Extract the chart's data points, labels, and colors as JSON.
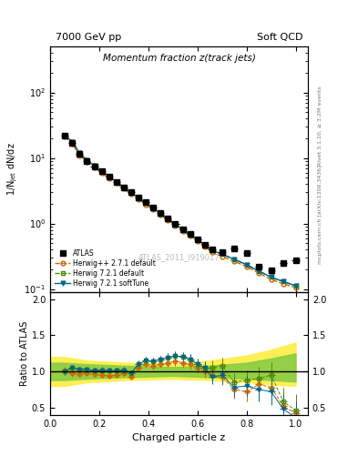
{
  "title_main": "Momentum fraction z(track jets)",
  "top_left_label": "7000 GeV pp",
  "top_right_label": "Soft QCD",
  "right_label_top": "Rivet 3.1.10, ≥ 3.2M events",
  "right_label_bottom": "mcplots.cern.ch [arXiv:1306.3436]",
  "watermark": "ATLAS_2011_I919017",
  "ylabel_main": "1/N$_\\mathregular{jet}$ dN/dz",
  "ylabel_ratio": "Ratio to ATLAS",
  "xlabel": "Charged particle z",
  "atlas_x": [
    0.06,
    0.09,
    0.12,
    0.15,
    0.18,
    0.21,
    0.24,
    0.27,
    0.3,
    0.33,
    0.36,
    0.39,
    0.42,
    0.45,
    0.48,
    0.51,
    0.54,
    0.57,
    0.6,
    0.63,
    0.66,
    0.7,
    0.75,
    0.8,
    0.85,
    0.9,
    0.95,
    1.0
  ],
  "atlas_y": [
    22.0,
    17.0,
    11.5,
    9.0,
    7.5,
    6.2,
    5.2,
    4.3,
    3.5,
    3.0,
    2.5,
    2.1,
    1.75,
    1.45,
    1.2,
    1.0,
    0.82,
    0.7,
    0.58,
    0.48,
    0.4,
    0.36,
    0.42,
    0.35,
    0.22,
    0.19,
    0.25,
    0.27
  ],
  "atlas_yerr": [
    0.5,
    0.4,
    0.3,
    0.25,
    0.2,
    0.18,
    0.15,
    0.12,
    0.1,
    0.09,
    0.08,
    0.07,
    0.06,
    0.05,
    0.04,
    0.04,
    0.03,
    0.03,
    0.03,
    0.02,
    0.02,
    0.02,
    0.02,
    0.02,
    0.02,
    0.02,
    0.02,
    0.03
  ],
  "hpp_x": [
    0.06,
    0.09,
    0.12,
    0.15,
    0.18,
    0.21,
    0.24,
    0.27,
    0.3,
    0.33,
    0.36,
    0.39,
    0.42,
    0.45,
    0.48,
    0.51,
    0.54,
    0.57,
    0.6,
    0.63,
    0.66,
    0.7,
    0.75,
    0.8,
    0.85,
    0.9,
    0.95,
    1.0
  ],
  "hpp_y": [
    21.0,
    16.5,
    11.0,
    8.8,
    7.2,
    5.9,
    4.9,
    4.1,
    3.4,
    2.8,
    2.35,
    1.95,
    1.62,
    1.35,
    1.12,
    0.93,
    0.77,
    0.65,
    0.54,
    0.44,
    0.365,
    0.315,
    0.265,
    0.22,
    0.175,
    0.14,
    0.12,
    0.105
  ],
  "h721_x": [
    0.06,
    0.09,
    0.12,
    0.15,
    0.18,
    0.21,
    0.24,
    0.27,
    0.3,
    0.33,
    0.36,
    0.39,
    0.42,
    0.45,
    0.48,
    0.51,
    0.54,
    0.57,
    0.6,
    0.63,
    0.66,
    0.7,
    0.75,
    0.8,
    0.85,
    0.9,
    0.95,
    1.0
  ],
  "h721_y": [
    22.0,
    17.8,
    11.8,
    9.3,
    7.6,
    6.3,
    5.25,
    4.35,
    3.58,
    2.95,
    2.47,
    2.05,
    1.7,
    1.42,
    1.18,
    0.98,
    0.81,
    0.68,
    0.57,
    0.47,
    0.39,
    0.34,
    0.285,
    0.235,
    0.188,
    0.152,
    0.13,
    0.112
  ],
  "h721st_x": [
    0.06,
    0.09,
    0.12,
    0.15,
    0.18,
    0.21,
    0.24,
    0.27,
    0.3,
    0.33,
    0.36,
    0.39,
    0.42,
    0.45,
    0.48,
    0.51,
    0.54,
    0.57,
    0.6,
    0.63,
    0.66,
    0.7,
    0.75,
    0.8,
    0.85,
    0.9,
    0.95,
    1.0
  ],
  "h721st_y": [
    22.0,
    17.8,
    11.8,
    9.3,
    7.6,
    6.3,
    5.25,
    4.35,
    3.58,
    2.95,
    2.47,
    2.05,
    1.7,
    1.42,
    1.18,
    0.98,
    0.81,
    0.68,
    0.57,
    0.47,
    0.39,
    0.34,
    0.285,
    0.235,
    0.188,
    0.152,
    0.13,
    0.112
  ],
  "atlas_color": "#000000",
  "hpp_color": "#cc6600",
  "h721_color": "#558800",
  "h721st_color": "#006688",
  "band_yellow_x": [
    0.0,
    0.06,
    0.15,
    0.3,
    0.5,
    0.65,
    0.8,
    0.9,
    1.0
  ],
  "band_yellow_low": [
    0.8,
    0.8,
    0.85,
    0.88,
    0.9,
    0.88,
    0.85,
    0.82,
    0.8
  ],
  "band_yellow_high": [
    1.2,
    1.2,
    1.15,
    1.12,
    1.1,
    1.15,
    1.22,
    1.3,
    1.4
  ],
  "band_green_x": [
    0.0,
    0.06,
    0.15,
    0.3,
    0.5,
    0.65,
    0.8,
    0.9,
    1.0
  ],
  "band_green_low": [
    0.88,
    0.88,
    0.9,
    0.92,
    0.94,
    0.92,
    0.9,
    0.88,
    0.86
  ],
  "band_green_high": [
    1.12,
    1.12,
    1.1,
    1.08,
    1.06,
    1.08,
    1.12,
    1.18,
    1.25
  ],
  "ratio_hpp": [
    1.02,
    0.97,
    0.96,
    0.98,
    0.96,
    0.95,
    0.94,
    0.95,
    0.97,
    0.93,
    1.05,
    1.1,
    1.08,
    1.1,
    1.12,
    1.14,
    1.12,
    1.1,
    1.05,
    1.0,
    0.95,
    0.92,
    0.75,
    0.72,
    0.82,
    0.78,
    0.52,
    0.42
  ],
  "ratio_hpp_err": [
    0.05,
    0.04,
    0.04,
    0.04,
    0.04,
    0.04,
    0.04,
    0.04,
    0.04,
    0.04,
    0.05,
    0.05,
    0.05,
    0.05,
    0.06,
    0.06,
    0.07,
    0.07,
    0.08,
    0.09,
    0.1,
    0.11,
    0.13,
    0.14,
    0.16,
    0.18,
    0.2,
    0.22
  ],
  "ratio_h721": [
    1.0,
    1.05,
    1.03,
    1.03,
    1.01,
    1.02,
    1.01,
    1.01,
    1.02,
    0.98,
    1.1,
    1.15,
    1.14,
    1.17,
    1.19,
    1.22,
    1.2,
    1.17,
    1.1,
    1.05,
    1.05,
    1.08,
    0.85,
    0.88,
    0.9,
    0.95,
    0.58,
    0.46
  ],
  "ratio_h721_err": [
    0.05,
    0.04,
    0.04,
    0.04,
    0.04,
    0.04,
    0.04,
    0.04,
    0.04,
    0.04,
    0.05,
    0.05,
    0.05,
    0.05,
    0.06,
    0.06,
    0.07,
    0.07,
    0.08,
    0.09,
    0.1,
    0.11,
    0.13,
    0.14,
    0.16,
    0.18,
    0.2,
    0.22
  ],
  "ratio_h721st": [
    1.0,
    1.05,
    1.03,
    1.03,
    1.01,
    1.02,
    1.01,
    1.01,
    1.02,
    0.98,
    1.1,
    1.15,
    1.14,
    1.17,
    1.19,
    1.22,
    1.2,
    1.17,
    1.1,
    1.05,
    0.92,
    0.95,
    0.78,
    0.8,
    0.75,
    0.72,
    0.48,
    0.36
  ],
  "ratio_h721st_err": [
    0.05,
    0.04,
    0.04,
    0.04,
    0.04,
    0.04,
    0.04,
    0.04,
    0.04,
    0.04,
    0.05,
    0.05,
    0.05,
    0.05,
    0.06,
    0.06,
    0.07,
    0.07,
    0.08,
    0.09,
    0.1,
    0.11,
    0.13,
    0.14,
    0.16,
    0.18,
    0.2,
    0.22
  ],
  "ylim_main": [
    0.09,
    500
  ],
  "ylim_ratio": [
    0.4,
    2.1
  ],
  "xlim": [
    0.0,
    1.05
  ],
  "yticks_ratio": [
    0.5,
    1.0,
    1.5,
    2.0
  ],
  "background_color": "#ffffff"
}
